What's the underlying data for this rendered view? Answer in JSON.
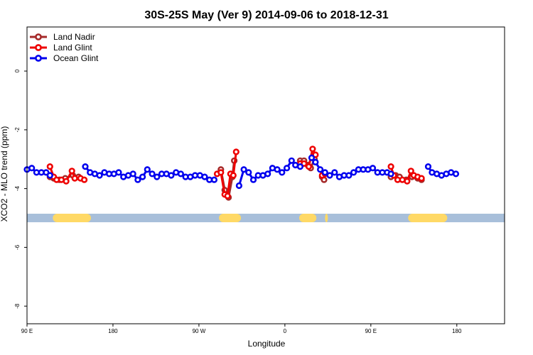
{
  "chart_data": {
    "type": "line",
    "title": "30S-25S May (Ver 9)   2014-09-06 to 2018-12-31",
    "xlabel": "Longitude",
    "ylabel": "XCO2 - MLO trend (ppm)",
    "xlim": [
      90,
      590
    ],
    "ylim": [
      -8.6,
      1.5
    ],
    "x_ticks": [
      {
        "value": 90,
        "label": "90 E"
      },
      {
        "value": 180,
        "label": "180"
      },
      {
        "value": 270,
        "label": "90 W"
      },
      {
        "value": 360,
        "label": "0"
      },
      {
        "value": 450,
        "label": "90 E"
      },
      {
        "value": 540,
        "label": "180"
      }
    ],
    "y_ticks": [
      {
        "value": 0,
        "label": "0"
      },
      {
        "value": -2,
        "label": "-2"
      },
      {
        "value": -4,
        "label": "-4"
      },
      {
        "value": -6,
        "label": "-6"
      },
      {
        "value": -8,
        "label": "-8"
      }
    ],
    "land_band": {
      "y": -5.0,
      "land_color": "#FFD966",
      "ocean_color": "#A8BFDA",
      "land_segments": [
        [
          117,
          157
        ],
        [
          291,
          314
        ],
        [
          375,
          393
        ],
        [
          402,
          405
        ],
        [
          489,
          530
        ]
      ]
    },
    "legend_position": "top-left",
    "series": [
      {
        "name": "Land Nadir",
        "color": "#A52A2A",
        "segments": [
          [
            [
              114,
              -3.6
            ],
            [
              118,
              -3.65
            ],
            [
              124,
              -3.7
            ],
            [
              130,
              -3.65
            ],
            [
              138,
              -3.55
            ],
            [
              144,
              -3.6
            ]
          ],
          [
            [
              293,
              -3.35
            ],
            [
              297,
              -4.05
            ],
            [
              301,
              -4.3
            ],
            [
              305,
              -3.6
            ],
            [
              307,
              -3.05
            ]
          ],
          [
            [
              376,
              -3.05
            ],
            [
              380,
              -3.05
            ],
            [
              384,
              -3.2
            ],
            [
              387,
              -3.3
            ],
            [
              391,
              -3.0
            ]
          ],
          [
            [
              399,
              -3.6
            ],
            [
              401,
              -3.7
            ]
          ],
          [
            [
              471,
              -3.6
            ],
            [
              476,
              -3.55
            ],
            [
              480,
              -3.6
            ],
            [
              487,
              -3.7
            ],
            [
              493,
              -3.6
            ],
            [
              499,
              -3.65
            ],
            [
              503,
              -3.7
            ]
          ]
        ]
      },
      {
        "name": "Land Glint",
        "color": "#EE0000",
        "segments": [
          [
            [
              114,
              -3.25
            ],
            [
              118,
              -3.6
            ],
            [
              121,
              -3.7
            ],
            [
              126,
              -3.7
            ],
            [
              131,
              -3.75
            ],
            [
              137,
              -3.4
            ],
            [
              140,
              -3.65
            ],
            [
              146,
              -3.65
            ],
            [
              150,
              -3.7
            ]
          ],
          [
            [
              289,
              -3.5
            ],
            [
              293,
              -3.45
            ],
            [
              297,
              -4.2
            ],
            [
              300,
              -4.25
            ],
            [
              303,
              -3.5
            ],
            [
              306,
              -3.55
            ],
            [
              309,
              -2.75
            ]
          ],
          [
            [
              376,
              -3.15
            ],
            [
              380,
              -3.15
            ],
            [
              385,
              -3.25
            ],
            [
              389,
              -2.65
            ],
            [
              392,
              -2.85
            ]
          ],
          [
            [
              399,
              -3.55
            ],
            [
              402,
              -3.5
            ]
          ],
          [
            [
              471,
              -3.25
            ],
            [
              474,
              -3.55
            ],
            [
              478,
              -3.7
            ],
            [
              483,
              -3.7
            ],
            [
              488,
              -3.75
            ],
            [
              492,
              -3.4
            ],
            [
              495,
              -3.55
            ],
            [
              499,
              -3.6
            ],
            [
              503,
              -3.65
            ]
          ]
        ]
      },
      {
        "name": "Ocean Glint",
        "color": "#0000EE",
        "segments": [
          [
            [
              90,
              -3.35
            ],
            [
              95,
              -3.3
            ],
            [
              100,
              -3.45
            ],
            [
              105,
              -3.45
            ],
            [
              110,
              -3.45
            ],
            [
              114,
              -3.55
            ]
          ],
          [
            [
              151,
              -3.25
            ],
            [
              156,
              -3.45
            ],
            [
              161,
              -3.5
            ],
            [
              166,
              -3.55
            ],
            [
              171,
              -3.45
            ],
            [
              176,
              -3.5
            ],
            [
              181,
              -3.5
            ],
            [
              186,
              -3.45
            ],
            [
              191,
              -3.6
            ],
            [
              196,
              -3.55
            ],
            [
              201,
              -3.5
            ],
            [
              206,
              -3.7
            ],
            [
              211,
              -3.6
            ],
            [
              216,
              -3.35
            ],
            [
              221,
              -3.5
            ],
            [
              226,
              -3.6
            ],
            [
              231,
              -3.5
            ],
            [
              236,
              -3.5
            ],
            [
              241,
              -3.55
            ],
            [
              246,
              -3.45
            ],
            [
              251,
              -3.5
            ],
            [
              256,
              -3.6
            ],
            [
              261,
              -3.6
            ],
            [
              266,
              -3.55
            ],
            [
              271,
              -3.55
            ],
            [
              276,
              -3.6
            ],
            [
              281,
              -3.7
            ],
            [
              286,
              -3.7
            ]
          ],
          [
            [
              312,
              -3.9
            ],
            [
              317,
              -3.35
            ],
            [
              322,
              -3.45
            ],
            [
              327,
              -3.7
            ],
            [
              332,
              -3.55
            ],
            [
              337,
              -3.55
            ],
            [
              342,
              -3.5
            ],
            [
              347,
              -3.3
            ],
            [
              352,
              -3.35
            ],
            [
              357,
              -3.45
            ],
            [
              362,
              -3.3
            ],
            [
              367,
              -3.05
            ],
            [
              371,
              -3.2
            ],
            [
              376,
              -3.25
            ]
          ],
          [
            [
              388,
              -2.95
            ],
            [
              392,
              -3.1
            ],
            [
              397,
              -3.35
            ],
            [
              402,
              -3.45
            ],
            [
              407,
              -3.55
            ],
            [
              412,
              -3.45
            ],
            [
              417,
              -3.6
            ],
            [
              422,
              -3.55
            ],
            [
              427,
              -3.55
            ],
            [
              432,
              -3.45
            ],
            [
              437,
              -3.35
            ],
            [
              442,
              -3.35
            ],
            [
              447,
              -3.35
            ],
            [
              452,
              -3.3
            ],
            [
              457,
              -3.45
            ],
            [
              462,
              -3.45
            ],
            [
              467,
              -3.45
            ],
            [
              471,
              -3.5
            ]
          ],
          [
            [
              510,
              -3.25
            ],
            [
              514,
              -3.45
            ],
            [
              519,
              -3.5
            ],
            [
              524,
              -3.55
            ],
            [
              529,
              -3.5
            ],
            [
              534,
              -3.45
            ],
            [
              539,
              -3.5
            ]
          ]
        ]
      }
    ]
  }
}
